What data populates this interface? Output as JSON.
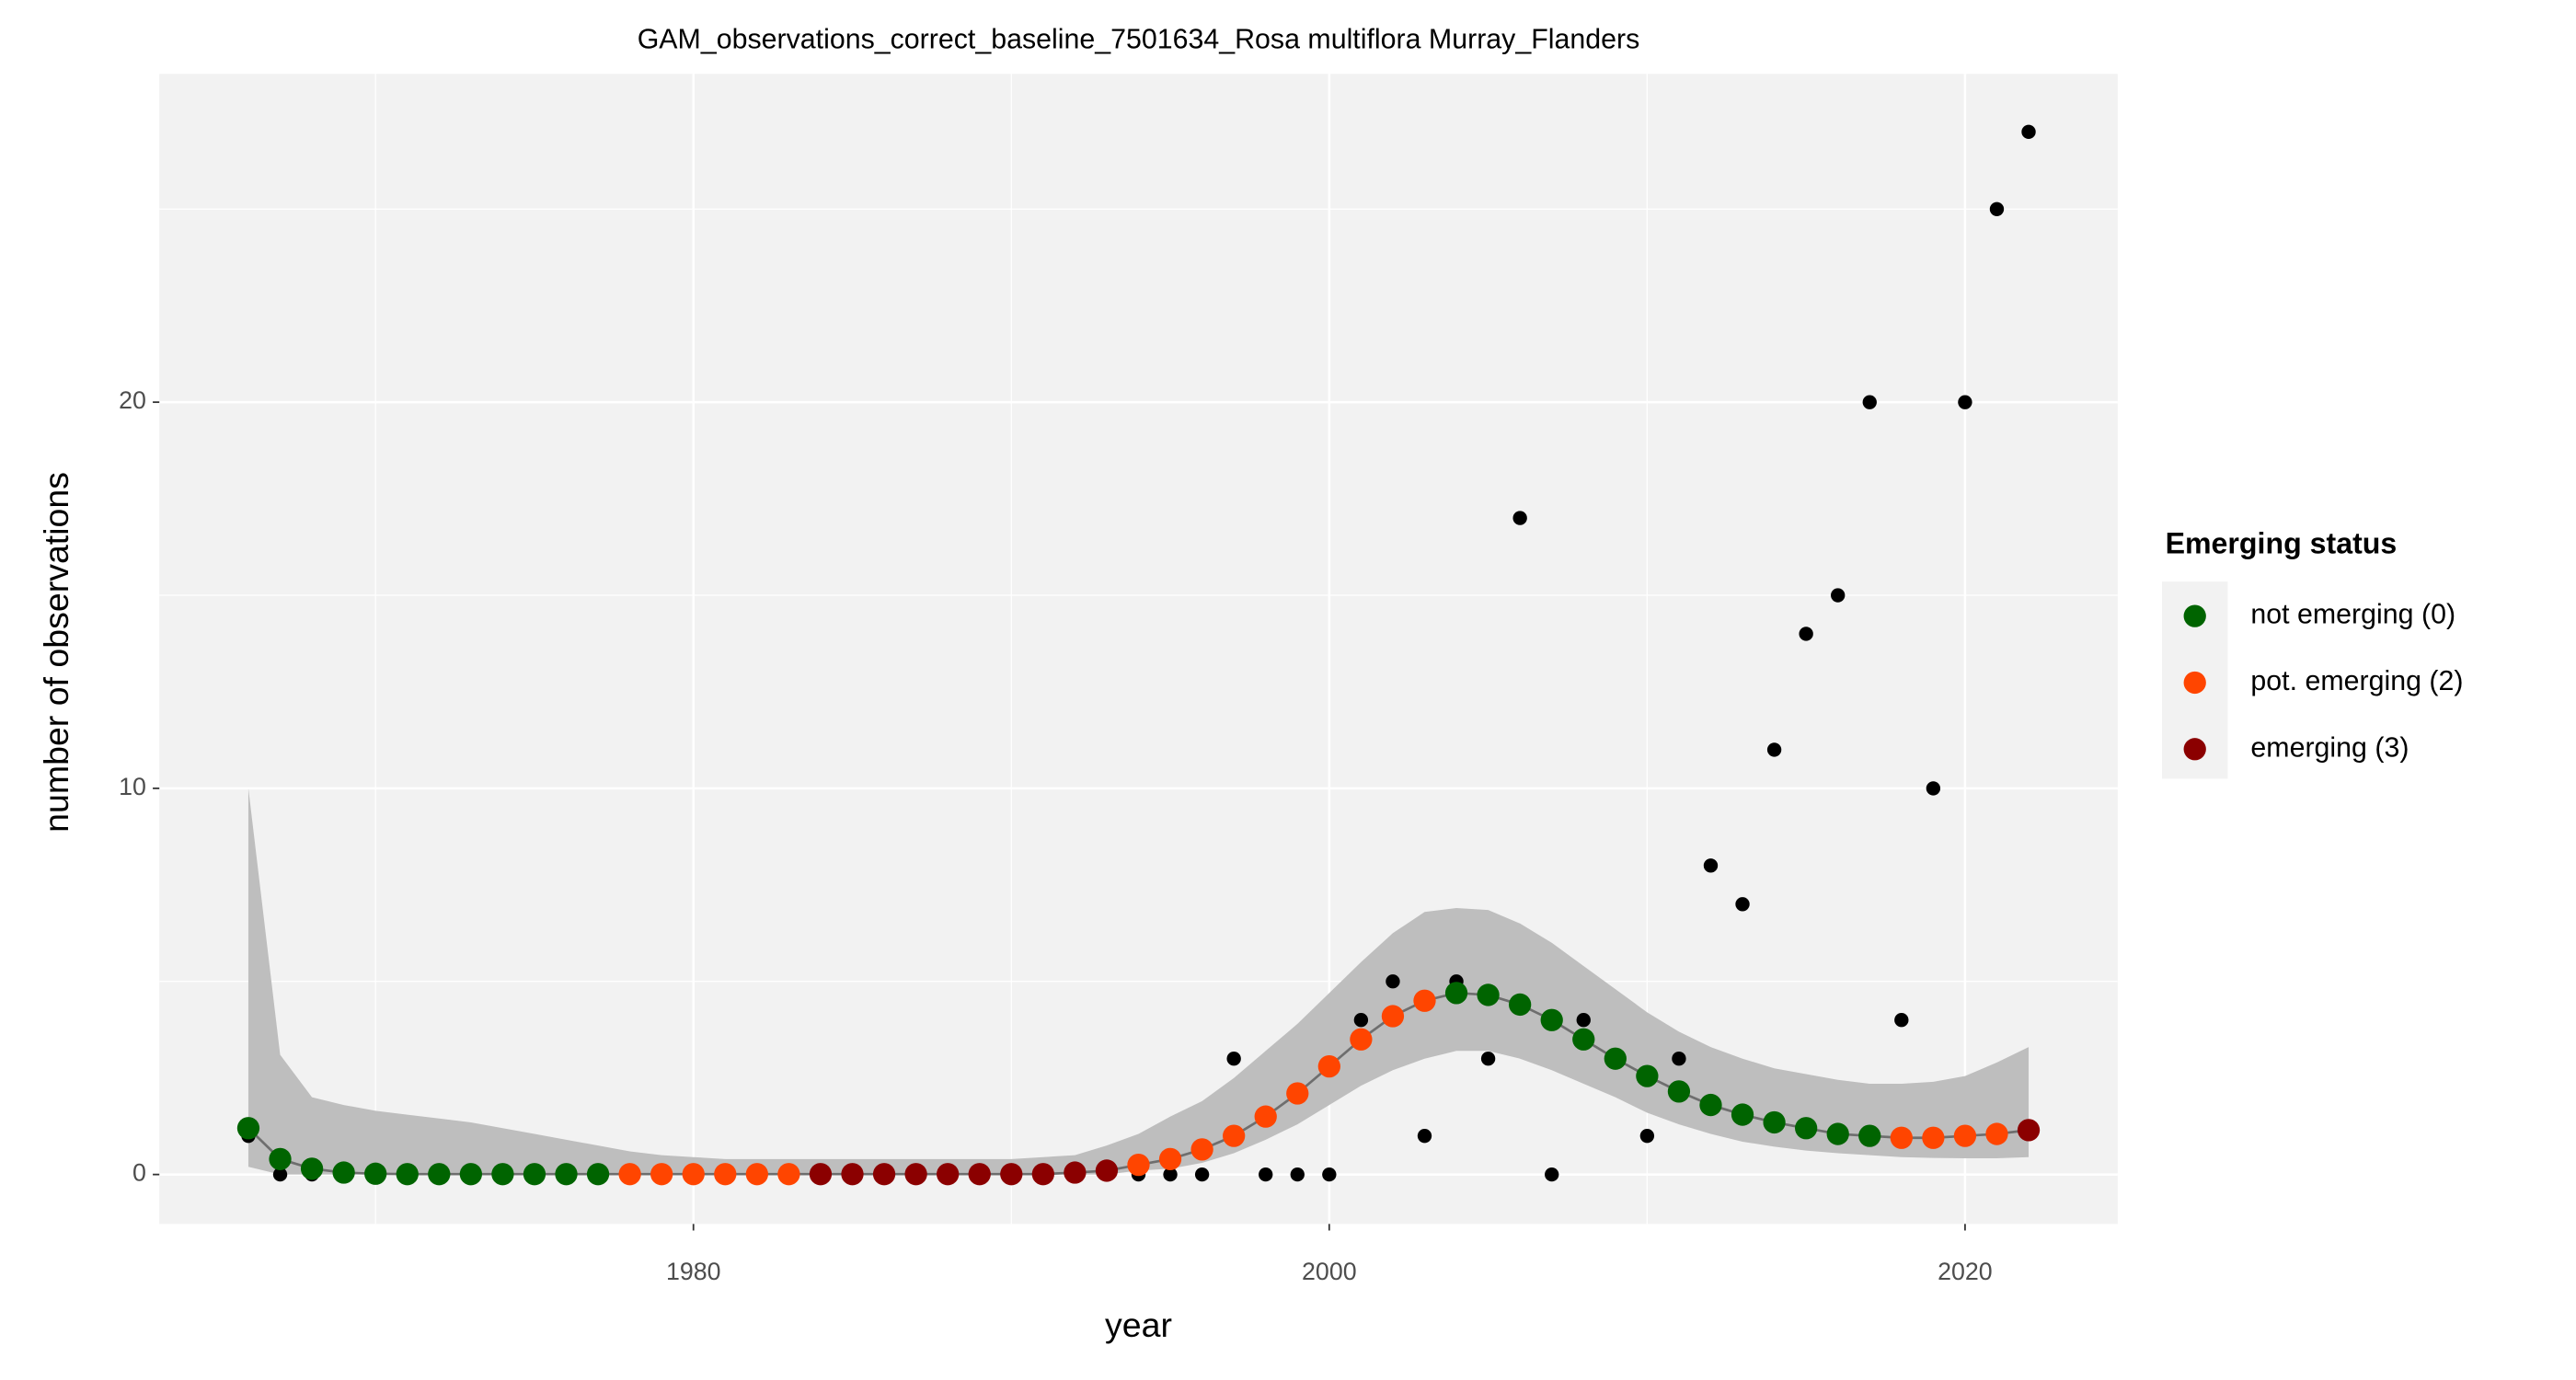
{
  "chart_data": {
    "type": "scatter",
    "title": "GAM_observations_correct_baseline_7501634_Rosa multiflora Murray_Flanders",
    "x_label": "year",
    "y_label": "number of observations",
    "xlim": [
      1963.2,
      2024.8
    ],
    "ylim": [
      -1.28,
      28.5
    ],
    "xticks": [
      1980,
      2000,
      2020
    ],
    "yticks": [
      0,
      10,
      20
    ],
    "grid": true,
    "x": [
      1966,
      1967,
      1968,
      1969,
      1970,
      1971,
      1972,
      1973,
      1974,
      1975,
      1976,
      1977,
      1978,
      1979,
      1980,
      1981,
      1982,
      1983,
      1984,
      1985,
      1986,
      1987,
      1988,
      1989,
      1990,
      1991,
      1992,
      1993,
      1994,
      1995,
      1996,
      1997,
      1998,
      1999,
      2000,
      2001,
      2002,
      2003,
      2004,
      2005,
      2006,
      2007,
      2008,
      2009,
      2010,
      2011,
      2012,
      2013,
      2014,
      2015,
      2016,
      2017,
      2018,
      2019,
      2020,
      2021,
      2022
    ],
    "observations": {
      "color": "#000000",
      "values": [
        1,
        0,
        0,
        0,
        0,
        0,
        0,
        0,
        0,
        0,
        0,
        0,
        0,
        0,
        0,
        0,
        0,
        0,
        0,
        0,
        0,
        0,
        0,
        0,
        0,
        0,
        0,
        0,
        0,
        0,
        0,
        3,
        0,
        0,
        0,
        4,
        5,
        1,
        5,
        3,
        17,
        0,
        4,
        3,
        1,
        3,
        8,
        7,
        11,
        14,
        15,
        20,
        4,
        10,
        20,
        25,
        27
      ]
    },
    "fit": {
      "line_color": "#6e6e6e",
      "ribbon_color": "#bebebe",
      "values": [
        1.2,
        0.4,
        0.15,
        0.05,
        0.02,
        0.01,
        0.01,
        0.01,
        0.01,
        0.01,
        0.01,
        0.01,
        0.01,
        0.01,
        0.01,
        0.01,
        0.01,
        0.01,
        0.01,
        0.01,
        0.01,
        0.01,
        0.01,
        0.01,
        0.01,
        0.01,
        0.05,
        0.1,
        0.25,
        0.4,
        0.65,
        1.0,
        1.5,
        2.1,
        2.8,
        3.5,
        4.1,
        4.5,
        4.7,
        4.65,
        4.4,
        4.0,
        3.5,
        3.0,
        2.55,
        2.15,
        1.8,
        1.55,
        1.35,
        1.2,
        1.05,
        1.0,
        0.95,
        0.95,
        1.0,
        1.05,
        1.15
      ],
      "upper": [
        10,
        3.1,
        2.0,
        1.8,
        1.65,
        1.55,
        1.45,
        1.35,
        1.2,
        1.05,
        0.9,
        0.75,
        0.6,
        0.5,
        0.45,
        0.4,
        0.4,
        0.4,
        0.4,
        0.4,
        0.4,
        0.4,
        0.4,
        0.4,
        0.4,
        0.45,
        0.5,
        0.75,
        1.05,
        1.5,
        1.9,
        2.5,
        3.2,
        3.9,
        4.7,
        5.5,
        6.25,
        6.8,
        6.9,
        6.85,
        6.5,
        6.0,
        5.4,
        4.8,
        4.2,
        3.7,
        3.3,
        3.0,
        2.75,
        2.6,
        2.45,
        2.35,
        2.35,
        2.4,
        2.55,
        2.9,
        3.3
      ],
      "lower": [
        0.2,
        0,
        0,
        0,
        0,
        0,
        0,
        0,
        0,
        0,
        0,
        0,
        0,
        0,
        0,
        0,
        0,
        0,
        0,
        0,
        0,
        0,
        0,
        0,
        0,
        0,
        0,
        0,
        0.1,
        0.15,
        0.3,
        0.55,
        0.9,
        1.3,
        1.8,
        2.3,
        2.7,
        3.0,
        3.2,
        3.2,
        3.0,
        2.7,
        2.35,
        2.0,
        1.6,
        1.3,
        1.05,
        0.85,
        0.72,
        0.62,
        0.55,
        0.5,
        0.45,
        0.43,
        0.42,
        0.42,
        0.45
      ],
      "status": [
        0,
        0,
        0,
        0,
        0,
        0,
        0,
        0,
        0,
        0,
        0,
        0,
        1,
        1,
        1,
        1,
        1,
        1,
        2,
        2,
        2,
        2,
        2,
        2,
        2,
        2,
        2,
        2,
        1,
        1,
        1,
        1,
        1,
        1,
        1,
        1,
        1,
        1,
        0,
        0,
        0,
        0,
        0,
        0,
        0,
        0,
        0,
        0,
        0,
        0,
        0,
        0,
        1,
        1,
        1,
        1,
        2
      ]
    },
    "legend": {
      "title": "Emerging status",
      "items": [
        {
          "label": "not emerging (0)",
          "color": "#006400"
        },
        {
          "label": "pot. emerging (2)",
          "color": "#ff4500"
        },
        {
          "label": "emerging (3)",
          "color": "#8b0000"
        }
      ]
    }
  }
}
